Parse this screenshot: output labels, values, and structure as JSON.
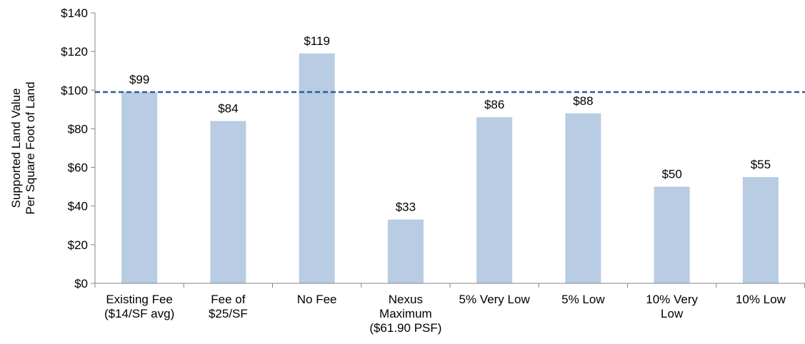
{
  "chart_data": {
    "type": "bar",
    "ylabel": "Supported Land Value\nPer Square Foot of Land",
    "categories": [
      "Existing Fee\n($14/SF avg)",
      "Fee of\n$25/SF",
      "No Fee",
      "Nexus\nMaximum\n($61.90 PSF)",
      "5% Very Low",
      "5% Low",
      "10% Very\nLow",
      "10% Low"
    ],
    "values": [
      99,
      84,
      119,
      33,
      86,
      88,
      50,
      55
    ],
    "value_labels": [
      "$99",
      "$84",
      "$119",
      "$33",
      "$86",
      "$88",
      "$50",
      "$55"
    ],
    "color": "#b8cce4",
    "ylim": [
      0,
      140
    ],
    "yticks": [
      {
        "value": 0,
        "label": "$0"
      },
      {
        "value": 20,
        "label": "$20"
      },
      {
        "value": 40,
        "label": "$40"
      },
      {
        "value": 60,
        "label": "$60"
      },
      {
        "value": 80,
        "label": "$80"
      },
      {
        "value": 100,
        "label": "$100"
      },
      {
        "value": 120,
        "label": "$120"
      },
      {
        "value": 140,
        "label": "$140"
      }
    ],
    "reference_line": {
      "value": 99,
      "color": "#2e5c9a",
      "style": "dashed"
    },
    "grid": false
  }
}
